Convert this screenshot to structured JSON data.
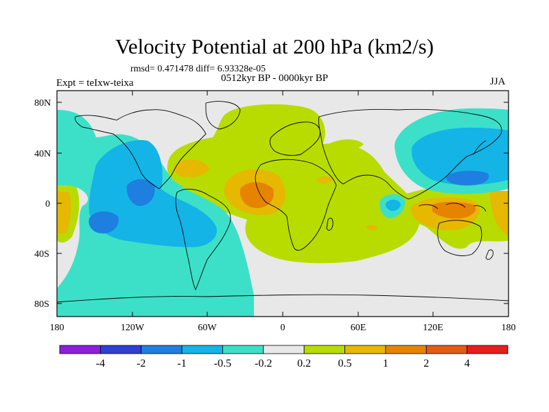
{
  "header": {
    "title": "Velocity Potential at 200 hPa (km2/s)",
    "stats": "rmsd= 0.471478 diff= 6.93328e-05",
    "experiment": "Expt = teIxw-teixa",
    "period": "0512kyr BP - 0000kyr BP",
    "season": "JJA"
  },
  "axes": {
    "y_ticks": [
      "80N",
      "40N",
      "0",
      "40S",
      "80S"
    ],
    "x_ticks": [
      "180",
      "120W",
      "60W",
      "0",
      "60E",
      "120E",
      "180"
    ]
  },
  "colorbar": {
    "labels": [
      "-4",
      "-2",
      "-1",
      "-0.5",
      "-0.2",
      "0.2",
      "0.5",
      "1",
      "2",
      "4"
    ],
    "colors": [
      "#8d1ee0",
      "#2d3fd6",
      "#1e7fe0",
      "#14b4e6",
      "#3ce0c8",
      "#e8e8e8",
      "#b8dc00",
      "#e6b800",
      "#e68400",
      "#e65a14",
      "#e61e1e"
    ]
  },
  "map_colors": {
    "background": "#e8e8e8",
    "weak_negative": "#3ce0c8",
    "negative": "#14b4e6",
    "strong_negative": "#1e7fe0",
    "weak_positive": "#b8dc00",
    "positive": "#e6b800",
    "strong_positive": "#e68400",
    "peak_positive": "#e65a14"
  }
}
